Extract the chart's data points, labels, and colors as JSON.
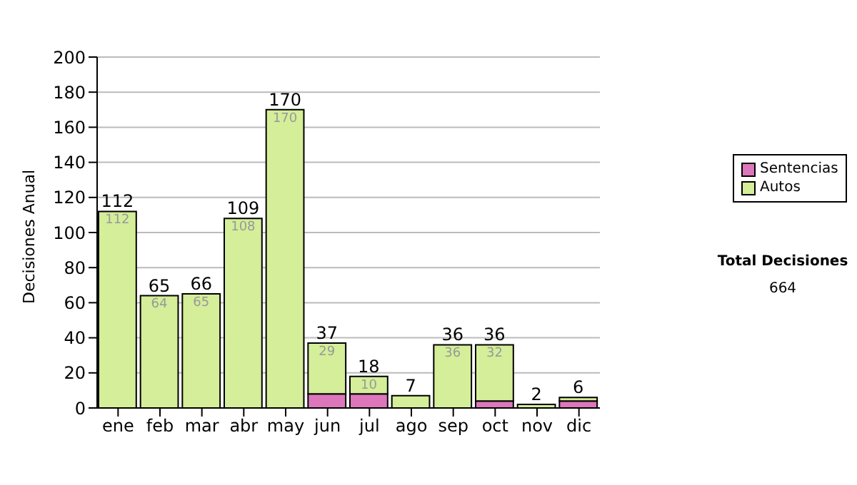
{
  "chart_data": {
    "type": "bar",
    "stacked": true,
    "ylabel": "Decisiones Anual",
    "categories": [
      "ene",
      "feb",
      "mar",
      "abr",
      "may",
      "jun",
      "jul",
      "ago",
      "sep",
      "oct",
      "nov",
      "dic"
    ],
    "series": [
      {
        "name": "Sentencias",
        "color": "#dd77bb",
        "values": [
          0,
          null,
          null,
          null,
          0,
          8,
          8,
          0,
          0,
          4,
          0,
          4
        ]
      },
      {
        "name": "Autos",
        "color": "#d4ee99",
        "values": [
          112,
          64,
          65,
          108,
          170,
          29,
          10,
          7,
          36,
          32,
          2,
          2
        ],
        "value_labels": [
          "112",
          "64",
          "65",
          "108",
          "170",
          "29",
          "10",
          null,
          "36",
          "32",
          null,
          null
        ]
      }
    ],
    "totals": [
      "112",
      "65",
      "66",
      "109",
      "170",
      "37",
      "18",
      "7",
      "36",
      "36",
      "2",
      "6"
    ],
    "ylim": [
      0,
      200
    ],
    "yticks": [
      0,
      20,
      40,
      60,
      80,
      100,
      120,
      140,
      160,
      180,
      200
    ],
    "grid": "y",
    "legend": "right",
    "annotations": [
      "Total Decisiones",
      "664"
    ]
  }
}
